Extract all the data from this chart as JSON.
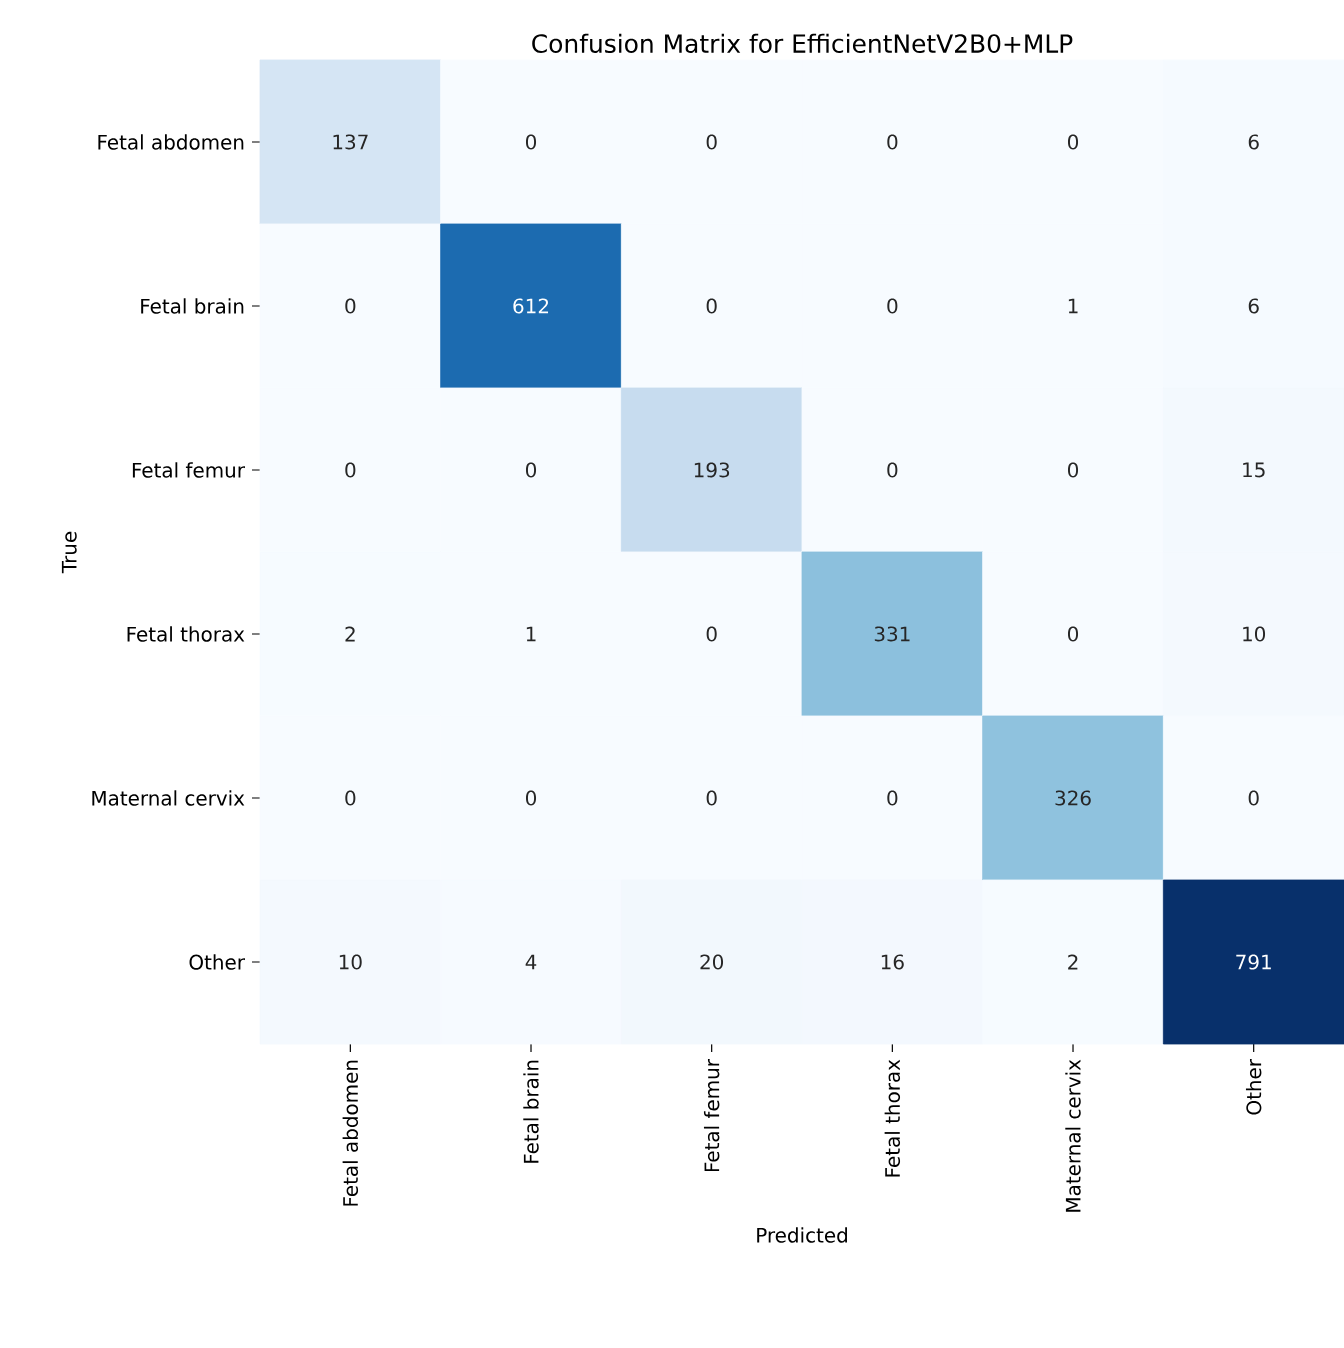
{
  "chart_data": {
    "type": "heatmap",
    "title": "Confusion Matrix for EfficientNetV2B0+MLP",
    "xlabel": "Predicted",
    "ylabel": "True",
    "categories": [
      "Fetal abdomen",
      "Fetal brain",
      "Fetal femur",
      "Fetal thorax",
      "Maternal cervix",
      "Other"
    ],
    "y_categories": [
      "Fetal abdomen",
      "Fetal brain",
      "Fetal femur",
      "Fetal thorax",
      "Maternal cervix",
      "Other"
    ],
    "cells": [
      [
        137,
        0,
        0,
        0,
        0,
        6
      ],
      [
        0,
        612,
        0,
        0,
        1,
        6
      ],
      [
        0,
        0,
        193,
        0,
        0,
        15
      ],
      [
        2,
        1,
        0,
        331,
        0,
        10
      ],
      [
        0,
        0,
        0,
        0,
        326,
        0
      ],
      [
        10,
        4,
        20,
        16,
        2,
        791
      ]
    ],
    "data_labels": true
  }
}
